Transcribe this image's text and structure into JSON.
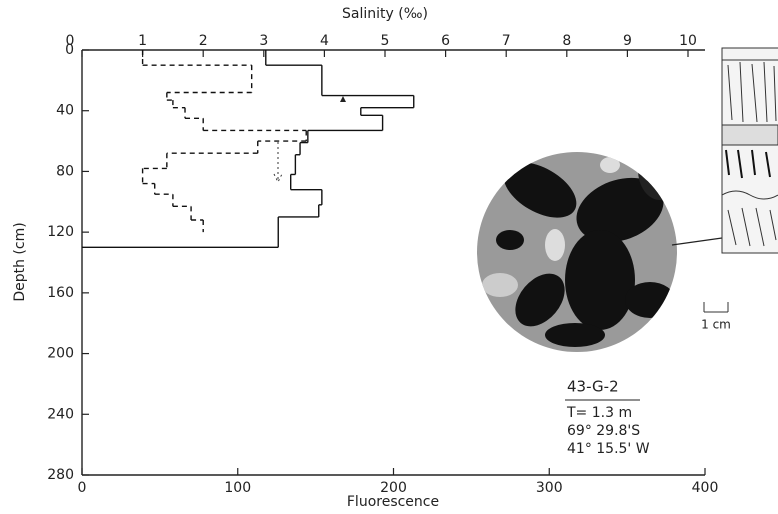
{
  "chart_data": {
    "type": "step",
    "x_label": "Fluorescence",
    "x2_label": "Salinity (‰)",
    "y_label": "Depth (cm)",
    "xlim": [
      0,
      400
    ],
    "xticks": [
      0,
      100,
      200,
      300,
      400
    ],
    "x2lim": [
      0,
      10
    ],
    "x2ticks": [
      0,
      1,
      2,
      3,
      4,
      5,
      6,
      7,
      8,
      9,
      10
    ],
    "ylim": [
      0,
      280
    ],
    "yticks": [
      0,
      40,
      80,
      120,
      160,
      200,
      240,
      280
    ],
    "series": [
      {
        "style": "solid",
        "color": "#111",
        "bins": [
          0,
          10,
          30,
          38,
          43,
          53,
          61,
          69,
          82,
          92,
          102,
          110,
          130
        ],
        "values": [
          118,
          154,
          213,
          179,
          193,
          145,
          140,
          137,
          134,
          154,
          152,
          126
        ]
      },
      {
        "style": "dashed",
        "color": "#111",
        "axis": "x2",
        "bins": [
          0,
          10,
          28,
          33,
          38,
          45,
          53,
          60,
          68,
          78,
          88,
          95,
          103,
          112,
          120
        ],
        "values": [
          1.0,
          2.8,
          1.4,
          1.5,
          1.7,
          2.0,
          3.7,
          2.9,
          1.4,
          1.0,
          1.2,
          1.5,
          1.8,
          2.0
        ]
      }
    ],
    "sample": {
      "id": "43-G-2",
      "lines": [
        "T= 1.3 m",
        "69° 29.8'S",
        "41° 15.5' W"
      ]
    },
    "scale_label": "1 cm"
  }
}
